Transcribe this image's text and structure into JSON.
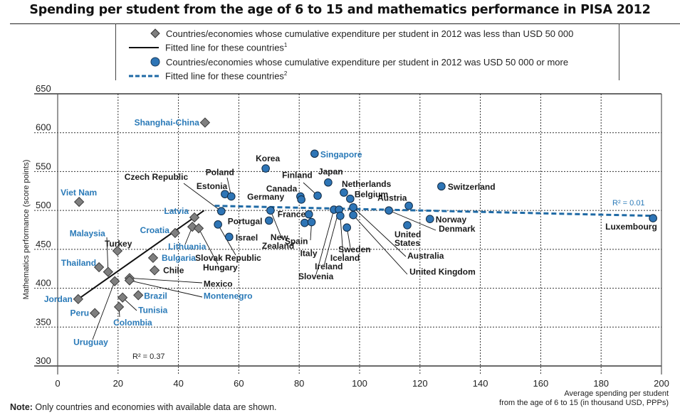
{
  "title": "Spending per student from the age of 6 to 15 and mathematics performance in PISA 2012",
  "legend": {
    "items": [
      {
        "marker": "diamond-icon",
        "label": "Countries/economies whose cumulative expenditure per student in 2012 was less than USD 50 000"
      },
      {
        "marker": "solid-line-icon",
        "label": "Fitted line for these countries",
        "footnote": "1"
      },
      {
        "marker": "circle-icon",
        "label": "Countries/economies whose cumulative expenditure per student in 2012 was USD 50 000 or more"
      },
      {
        "marker": "dashed-line-icon",
        "label": "Fitted line for these countries",
        "footnote": "2"
      }
    ]
  },
  "note": {
    "prefix": "Note:",
    "text": " Only countries and economies with available data are shown."
  },
  "colors": {
    "diamond": "#7f7f7f",
    "circle": "#2e75b6",
    "fit_low": "#111111",
    "fit_high": "#1f6aa5",
    "blue_label": "#2a7ab8",
    "black_label": "#1a1a1a"
  },
  "chart_data": {
    "type": "scatter",
    "title": "Spending per student from the age of 6 to 15 and mathematics performance in PISA 2012",
    "xlabel": "Average spending per student from the age of 6 to 15 (in thousand USD, PPPs)",
    "xlabel_lines": [
      "Average spending per student",
      "from the age of 6 to 15 (in thousand USD, PPPs)"
    ],
    "ylabel": "Mathematics performance (score points)",
    "xlim": [
      0,
      200
    ],
    "ylim": [
      300,
      650
    ],
    "xticks": [
      0,
      20,
      40,
      60,
      80,
      100,
      120,
      140,
      160,
      180,
      200
    ],
    "yticks": [
      300,
      350,
      400,
      450,
      500,
      550,
      600,
      650
    ],
    "grid": true,
    "legend_position": "top",
    "series": [
      {
        "name": "Countries/economies whose cumulative expenditure per student in 2012 was less than USD 50 000",
        "marker": "diamond",
        "points": [
          {
            "label": "Shanghai-China",
            "x": 48.8,
            "y": 613,
            "partner": true
          },
          {
            "label": "Viet Nam",
            "x": 7.1,
            "y": 511,
            "partner": true
          },
          {
            "label": "Jordan",
            "x": 6.8,
            "y": 386,
            "partner": true
          },
          {
            "label": "Peru",
            "x": 12.3,
            "y": 368,
            "partner": true
          },
          {
            "label": "Thailand",
            "x": 13.7,
            "y": 427,
            "partner": true
          },
          {
            "label": "Malaysia",
            "x": 16.7,
            "y": 421,
            "partner": true
          },
          {
            "label": "Turkey",
            "x": 19.8,
            "y": 448,
            "partner": false
          },
          {
            "label": "Uruguay",
            "x": 18.9,
            "y": 409,
            "partner": true
          },
          {
            "label": "Mexico",
            "x": 23.8,
            "y": 413,
            "partner": false
          },
          {
            "label": "Montenegro",
            "x": 23.8,
            "y": 410,
            "partner": true
          },
          {
            "label": "Tunisia",
            "x": 21.5,
            "y": 388,
            "partner": true
          },
          {
            "label": "Colombia",
            "x": 20.3,
            "y": 376,
            "partner": true
          },
          {
            "label": "Brazil",
            "x": 26.7,
            "y": 391,
            "partner": true
          },
          {
            "label": "Bulgaria",
            "x": 31.6,
            "y": 439,
            "partner": true
          },
          {
            "label": "Chile",
            "x": 32.1,
            "y": 423,
            "partner": false
          },
          {
            "label": "Croatia",
            "x": 38.9,
            "y": 471,
            "partner": true
          },
          {
            "label": "Latvia",
            "x": 45.3,
            "y": 491,
            "partner": true
          },
          {
            "label": "Lithuania",
            "x": 44.6,
            "y": 479,
            "partner": true
          },
          {
            "label": "Hungary",
            "x": 46.7,
            "y": 477,
            "partner": false
          }
        ],
        "fit": {
          "r2_label": "R² = 0.37",
          "x0": 6.8,
          "y0": 386,
          "x1": 48.5,
          "y1": 500
        }
      },
      {
        "name": "Countries/economies whose cumulative expenditure per student in 2012 was USD 50 000 or more",
        "marker": "circle",
        "points": [
          {
            "label": "Czech Republic",
            "x": 54.2,
            "y": 499,
            "partner": false
          },
          {
            "label": "Estonia",
            "x": 55.4,
            "y": 521,
            "partner": false
          },
          {
            "label": "Poland",
            "x": 57.5,
            "y": 518,
            "partner": false
          },
          {
            "label": "Slovak Republic",
            "x": 53.1,
            "y": 482,
            "partner": false
          },
          {
            "label": "Israel",
            "x": 56.8,
            "y": 466,
            "partner": false
          },
          {
            "label": "Portugal",
            "x": 70.0,
            "y": 487,
            "partner": false
          },
          {
            "label": "New Zealand",
            "x": 70.5,
            "y": 500,
            "partner": false
          },
          {
            "label": "Korea",
            "x": 68.9,
            "y": 554,
            "partner": false
          },
          {
            "label": "Singapore",
            "x": 85.1,
            "y": 573,
            "partner": true
          },
          {
            "label": "Canada",
            "x": 80.4,
            "y": 518,
            "partner": false
          },
          {
            "label": "Germany",
            "x": 80.7,
            "y": 514,
            "partner": false
          },
          {
            "label": "Finland",
            "x": 86.1,
            "y": 519,
            "partner": false
          },
          {
            "label": "Japan",
            "x": 89.6,
            "y": 536,
            "partner": false
          },
          {
            "label": "France",
            "x": 83.2,
            "y": 495,
            "partner": false
          },
          {
            "label": "Spain",
            "x": 81.8,
            "y": 484,
            "partner": false
          },
          {
            "label": "Italy",
            "x": 84.1,
            "y": 485,
            "partner": false
          },
          {
            "label": "Netherlands",
            "x": 94.8,
            "y": 523,
            "partner": false
          },
          {
            "label": "Belgium",
            "x": 96.9,
            "y": 515,
            "partner": false
          },
          {
            "label": "Slovenia",
            "x": 91.5,
            "y": 501,
            "partner": false
          },
          {
            "label": "Ireland",
            "x": 93.2,
            "y": 501,
            "partner": false
          },
          {
            "label": "Iceland",
            "x": 93.6,
            "y": 493,
            "partner": false
          },
          {
            "label": "Sweden",
            "x": 95.8,
            "y": 478,
            "partner": false
          },
          {
            "label": "Australia",
            "x": 97.9,
            "y": 504,
            "partner": false
          },
          {
            "label": "United Kingdom",
            "x": 97.9,
            "y": 494,
            "partner": false
          },
          {
            "label": "Denmark",
            "x": 109.7,
            "y": 500,
            "partner": false
          },
          {
            "label": "Austria",
            "x": 116.3,
            "y": 506,
            "partner": false
          },
          {
            "label": "United States",
            "x": 115.8,
            "y": 481,
            "partner": false
          },
          {
            "label": "Norway",
            "x": 123.3,
            "y": 489,
            "partner": false
          },
          {
            "label": "Switzerland",
            "x": 127.1,
            "y": 531,
            "partner": false
          },
          {
            "label": "Luxembourg",
            "x": 197.2,
            "y": 490,
            "partner": false
          }
        ],
        "fit": {
          "r2_label": "R² = 0.01",
          "x0": 52.0,
          "y0": 506,
          "x1": 198.0,
          "y1": 493
        }
      }
    ]
  }
}
